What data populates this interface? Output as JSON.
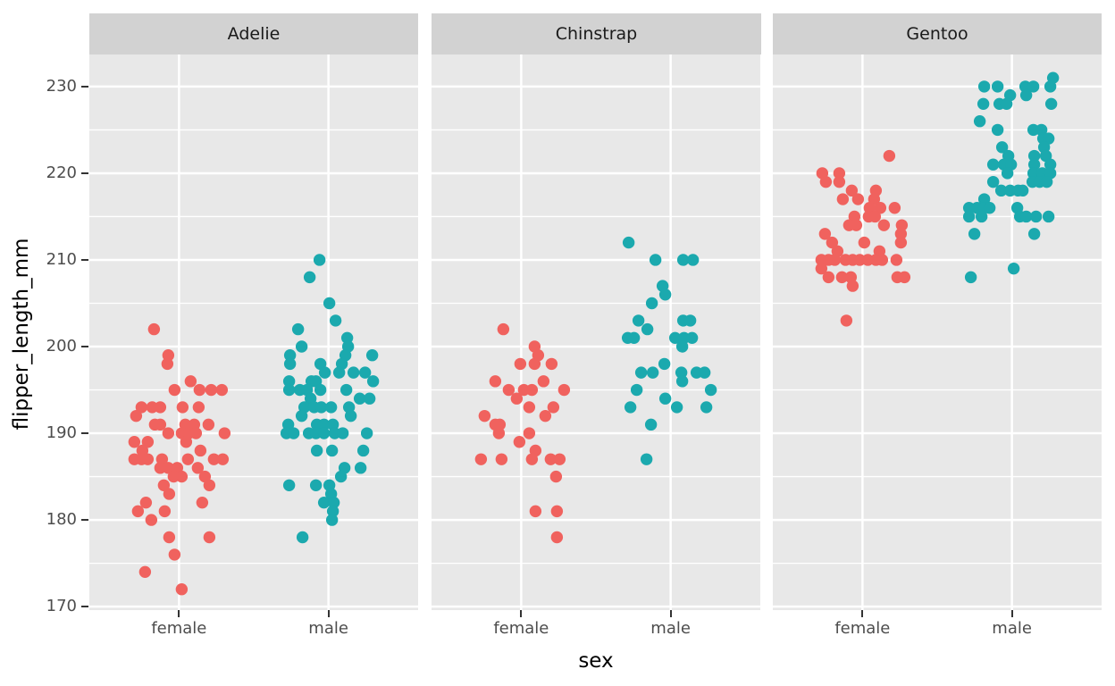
{
  "chart_data": {
    "type": "scatter",
    "subtype": "jittered strip plot, faceted by species",
    "xlabel": "sex",
    "ylabel": "flipper_length_mm",
    "x_categories": [
      "female",
      "male"
    ],
    "y_ticks": [
      170,
      180,
      190,
      200,
      210,
      220,
      230
    ],
    "y_minor_ticks": [
      175,
      185,
      195,
      205,
      215,
      225
    ],
    "ylim": [
      169.6,
      233.7
    ],
    "legend": "none",
    "grid": "white major and minor lines on gray panels",
    "colors": {
      "female": "#F0625E",
      "male": "#1BA9AE",
      "panel_bg": "#E8E8E8",
      "strip_bg": "#D2D2D2",
      "gridline": "#FFFFFF",
      "tick_text": "#4D4D4D",
      "axis_title_text": "#000000"
    },
    "point_format": "[jitter_offset_px_from_category_center, flipper_length_mm]",
    "facets": [
      {
        "species": "Adelie",
        "points": {
          "female": [
            [
              -28,
              202
            ],
            [
              -12,
              199
            ],
            [
              -13,
              198
            ],
            [
              13,
              196
            ],
            [
              -5,
              195
            ],
            [
              23,
              195
            ],
            [
              36,
              195
            ],
            [
              48,
              195
            ],
            [
              -42,
              193
            ],
            [
              -30,
              193
            ],
            [
              -21,
              193
            ],
            [
              4,
              193
            ],
            [
              22,
              193
            ],
            [
              -48,
              192
            ],
            [
              -27,
              191
            ],
            [
              -21,
              191
            ],
            [
              7,
              191
            ],
            [
              17,
              191
            ],
            [
              33,
              191
            ],
            [
              -12,
              190
            ],
            [
              3,
              190
            ],
            [
              11,
              190
            ],
            [
              19,
              190
            ],
            [
              51,
              190
            ],
            [
              -50,
              189
            ],
            [
              -35,
              189
            ],
            [
              8,
              189
            ],
            [
              -41,
              188
            ],
            [
              24,
              188
            ],
            [
              -50,
              187
            ],
            [
              -42,
              187
            ],
            [
              -35,
              187
            ],
            [
              -19,
              187
            ],
            [
              10,
              187
            ],
            [
              39,
              187
            ],
            [
              49,
              187
            ],
            [
              -21,
              186
            ],
            [
              -12,
              186
            ],
            [
              -2,
              186
            ],
            [
              21,
              186
            ],
            [
              3,
              185
            ],
            [
              29,
              185
            ],
            [
              -6,
              185
            ],
            [
              -17,
              184
            ],
            [
              34,
              184
            ],
            [
              -11,
              183
            ],
            [
              -37,
              182
            ],
            [
              26,
              182
            ],
            [
              -46,
              181
            ],
            [
              -16,
              181
            ],
            [
              -31,
              180
            ],
            [
              -11,
              178
            ],
            [
              34,
              178
            ],
            [
              -5,
              176
            ],
            [
              -38,
              174
            ],
            [
              3,
              172
            ]
          ],
          "male": [
            [
              -10,
              210
            ],
            [
              -21,
              208
            ],
            [
              1,
              205
            ],
            [
              8,
              203
            ],
            [
              -34,
              202
            ],
            [
              21,
              201
            ],
            [
              -30,
              200
            ],
            [
              22,
              200
            ],
            [
              -43,
              199
            ],
            [
              19,
              199
            ],
            [
              49,
              199
            ],
            [
              -43,
              198
            ],
            [
              -9,
              198
            ],
            [
              15,
              198
            ],
            [
              -4,
              197
            ],
            [
              12,
              197
            ],
            [
              28,
              197
            ],
            [
              41,
              197
            ],
            [
              -44,
              196
            ],
            [
              -19,
              196
            ],
            [
              -14,
              196
            ],
            [
              50,
              196
            ],
            [
              -44,
              195
            ],
            [
              -32,
              195
            ],
            [
              -24,
              195
            ],
            [
              -9,
              195
            ],
            [
              20,
              195
            ],
            [
              -20,
              194
            ],
            [
              35,
              194
            ],
            [
              46,
              194
            ],
            [
              -27,
              193
            ],
            [
              -16,
              193
            ],
            [
              -8,
              193
            ],
            [
              3,
              193
            ],
            [
              23,
              193
            ],
            [
              -30,
              192
            ],
            [
              25,
              192
            ],
            [
              -45,
              191
            ],
            [
              -13,
              191
            ],
            [
              -5,
              191
            ],
            [
              5,
              191
            ],
            [
              -47,
              190
            ],
            [
              -39,
              190
            ],
            [
              -22,
              190
            ],
            [
              -14,
              190
            ],
            [
              -5,
              190
            ],
            [
              7,
              190
            ],
            [
              16,
              190
            ],
            [
              43,
              190
            ],
            [
              -13,
              188
            ],
            [
              4,
              188
            ],
            [
              39,
              188
            ],
            [
              18,
              186
            ],
            [
              36,
              186
            ],
            [
              14,
              185
            ],
            [
              -44,
              184
            ],
            [
              -14,
              184
            ],
            [
              1,
              184
            ],
            [
              3,
              183
            ],
            [
              -5,
              182
            ],
            [
              6,
              182
            ],
            [
              5,
              181
            ],
            [
              4,
              180
            ],
            [
              -29,
              178
            ]
          ]
        }
      },
      {
        "species": "Chinstrap",
        "points": {
          "female": [
            [
              -20,
              202
            ],
            [
              15,
              200
            ],
            [
              19,
              199
            ],
            [
              -1,
              198
            ],
            [
              15,
              198
            ],
            [
              34,
              198
            ],
            [
              -29,
              196
            ],
            [
              25,
              196
            ],
            [
              -14,
              195
            ],
            [
              3,
              195
            ],
            [
              12,
              195
            ],
            [
              48,
              195
            ],
            [
              -5,
              194
            ],
            [
              9,
              193
            ],
            [
              36,
              193
            ],
            [
              -41,
              192
            ],
            [
              27,
              192
            ],
            [
              -29,
              191
            ],
            [
              -24,
              191
            ],
            [
              -25,
              190
            ],
            [
              9,
              190
            ],
            [
              -2,
              189
            ],
            [
              16,
              188
            ],
            [
              -45,
              187
            ],
            [
              -22,
              187
            ],
            [
              12,
              187
            ],
            [
              33,
              187
            ],
            [
              43,
              187
            ],
            [
              39,
              185
            ],
            [
              16,
              181
            ],
            [
              40,
              181
            ],
            [
              40,
              178
            ]
          ],
          "male": [
            [
              -47,
              212
            ],
            [
              -17,
              210
            ],
            [
              14,
              210
            ],
            [
              25,
              210
            ],
            [
              -9,
              207
            ],
            [
              -6,
              206
            ],
            [
              -21,
              205
            ],
            [
              -36,
              203
            ],
            [
              14,
              203
            ],
            [
              22,
              203
            ],
            [
              -26,
              202
            ],
            [
              -48,
              201
            ],
            [
              -41,
              201
            ],
            [
              5,
              201
            ],
            [
              15,
              201
            ],
            [
              24,
              201
            ],
            [
              13,
              200
            ],
            [
              -7,
              198
            ],
            [
              -33,
              197
            ],
            [
              -20,
              197
            ],
            [
              12,
              197
            ],
            [
              29,
              197
            ],
            [
              38,
              197
            ],
            [
              13,
              196
            ],
            [
              -38,
              195
            ],
            [
              45,
              195
            ],
            [
              -6,
              194
            ],
            [
              -45,
              193
            ],
            [
              7,
              193
            ],
            [
              40,
              193
            ],
            [
              -22,
              191
            ],
            [
              -27,
              187
            ]
          ]
        }
      },
      {
        "species": "Gentoo",
        "points": {
          "female": [
            [
              30,
              222
            ],
            [
              -45,
              220
            ],
            [
              -26,
              220
            ],
            [
              -41,
              219
            ],
            [
              -26,
              219
            ],
            [
              -12,
              218
            ],
            [
              15,
              218
            ],
            [
              -22,
              217
            ],
            [
              -5,
              217
            ],
            [
              13,
              217
            ],
            [
              8,
              216
            ],
            [
              20,
              216
            ],
            [
              36,
              216
            ],
            [
              -9,
              215
            ],
            [
              7,
              215
            ],
            [
              14,
              215
            ],
            [
              -15,
              214
            ],
            [
              -7,
              214
            ],
            [
              24,
              214
            ],
            [
              44,
              214
            ],
            [
              -42,
              213
            ],
            [
              43,
              213
            ],
            [
              -34,
              212
            ],
            [
              2,
              212
            ],
            [
              43,
              212
            ],
            [
              -28,
              211
            ],
            [
              19,
              211
            ],
            [
              -46,
              210
            ],
            [
              -38,
              210
            ],
            [
              -31,
              210
            ],
            [
              -19,
              210
            ],
            [
              -11,
              210
            ],
            [
              -3,
              210
            ],
            [
              6,
              210
            ],
            [
              15,
              210
            ],
            [
              22,
              210
            ],
            [
              38,
              210
            ],
            [
              -46,
              209
            ],
            [
              -38,
              208
            ],
            [
              -23,
              208
            ],
            [
              -13,
              208
            ],
            [
              39,
              208
            ],
            [
              47,
              208
            ],
            [
              -11,
              207
            ],
            [
              -18,
              203
            ]
          ],
          "male": [
            [
              46,
              231
            ],
            [
              -31,
              230
            ],
            [
              -16,
              230
            ],
            [
              15,
              230
            ],
            [
              24,
              230
            ],
            [
              43,
              230
            ],
            [
              -2,
              229
            ],
            [
              16,
              229
            ],
            [
              -32,
              228
            ],
            [
              -14,
              228
            ],
            [
              -6,
              228
            ],
            [
              44,
              228
            ],
            [
              -36,
              226
            ],
            [
              -16,
              225
            ],
            [
              24,
              225
            ],
            [
              33,
              225
            ],
            [
              35,
              224
            ],
            [
              41,
              224
            ],
            [
              -11,
              223
            ],
            [
              36,
              223
            ],
            [
              -4,
              222
            ],
            [
              25,
              222
            ],
            [
              38,
              222
            ],
            [
              -21,
              221
            ],
            [
              -9,
              221
            ],
            [
              -1,
              221
            ],
            [
              25,
              221
            ],
            [
              43,
              221
            ],
            [
              -5,
              220
            ],
            [
              24,
              220
            ],
            [
              34,
              220
            ],
            [
              43,
              220
            ],
            [
              -21,
              219
            ],
            [
              23,
              219
            ],
            [
              31,
              219
            ],
            [
              39,
              219
            ],
            [
              -12,
              218
            ],
            [
              -2,
              218
            ],
            [
              7,
              218
            ],
            [
              12,
              218
            ],
            [
              -31,
              217
            ],
            [
              -48,
              216
            ],
            [
              -39,
              216
            ],
            [
              -31,
              216
            ],
            [
              -25,
              216
            ],
            [
              6,
              216
            ],
            [
              -48,
              215
            ],
            [
              -34,
              215
            ],
            [
              9,
              215
            ],
            [
              16,
              215
            ],
            [
              27,
              215
            ],
            [
              41,
              215
            ],
            [
              -42,
              213
            ],
            [
              25,
              213
            ],
            [
              2,
              209
            ],
            [
              -46,
              208
            ]
          ]
        }
      }
    ]
  }
}
